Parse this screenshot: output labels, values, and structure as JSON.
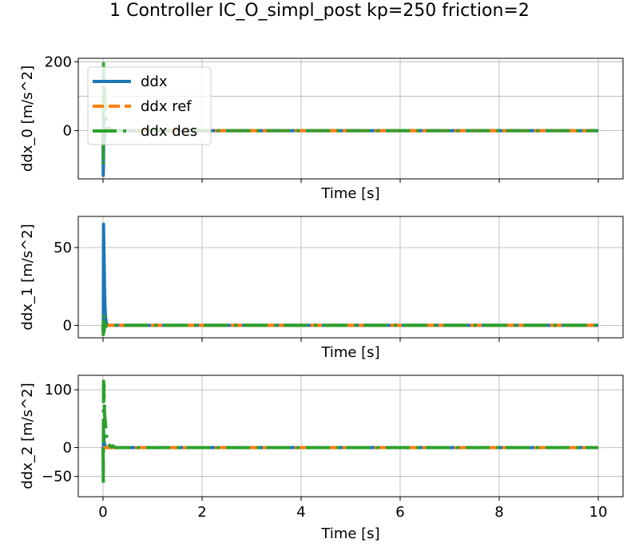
{
  "figure": {
    "title": "1 Controller IC_O_simpl_post kp=250 friction=2"
  },
  "colors": {
    "ddx": "#1f77b4",
    "ddx_ref": "#ff7f0e",
    "ddx_des": "#2ca02c"
  },
  "chart_data": [
    {
      "type": "line",
      "xlabel": "Time [s]",
      "ylabel": "ddx_0 [m/s^2]",
      "xlim": [
        -0.5,
        10.5
      ],
      "ylim": [
        -140,
        210
      ],
      "xticks": [
        0,
        2,
        4,
        6,
        8,
        10
      ],
      "yticks": [
        0,
        100,
        200
      ],
      "yticks_labeled": [
        0,
        200
      ],
      "show_x_tick_labels": false,
      "grid": true,
      "legend": "upper-left",
      "series": [
        {
          "name": "ddx",
          "style": "solid",
          "x": [
            0,
            0.005,
            0.01,
            0.015,
            0.02,
            0.03,
            0.04,
            0.05,
            0.07,
            0.1,
            0.15,
            0.2,
            0.5,
            1,
            5,
            10
          ],
          "values": [
            0,
            -130,
            -90,
            40,
            0,
            -30,
            -10,
            5,
            0,
            0,
            0,
            0,
            0,
            0,
            0,
            0
          ]
        },
        {
          "name": "ddx ref",
          "style": "dashed",
          "x": [
            0,
            10
          ],
          "values": [
            0,
            0
          ]
        },
        {
          "name": "ddx des",
          "style": "dashed",
          "x": [
            0,
            0.005,
            0.01,
            0.02,
            0.03,
            0.04,
            0.05,
            0.06,
            0.08,
            0.1,
            0.15,
            0.2,
            0.3,
            0.5,
            1,
            5,
            10
          ],
          "values": [
            0,
            -100,
            195,
            150,
            110,
            80,
            60,
            40,
            20,
            10,
            3,
            1,
            0,
            0,
            0,
            0,
            0
          ]
        }
      ]
    },
    {
      "type": "line",
      "xlabel": "Time [s]",
      "ylabel": "ddx_1 [m/s^2]",
      "xlim": [
        -0.5,
        10.5
      ],
      "ylim": [
        -8,
        70
      ],
      "xticks": [
        0,
        2,
        4,
        6,
        8,
        10
      ],
      "yticks": [
        0,
        50
      ],
      "show_x_tick_labels": false,
      "grid": true,
      "series": [
        {
          "name": "ddx",
          "style": "solid",
          "x": [
            0,
            0.005,
            0.01,
            0.02,
            0.03,
            0.04,
            0.05,
            0.07,
            0.1,
            0.15,
            0.2,
            0.5,
            1,
            5,
            10
          ],
          "values": [
            0,
            -5,
            65,
            45,
            25,
            12,
            5,
            1,
            0,
            0,
            0,
            0,
            0,
            0,
            0
          ]
        },
        {
          "name": "ddx ref",
          "style": "dashed",
          "x": [
            0,
            10
          ],
          "values": [
            0,
            0
          ]
        },
        {
          "name": "ddx des",
          "style": "dashed",
          "x": [
            0,
            0.005,
            0.01,
            0.02,
            0.03,
            0.05,
            0.08,
            0.1,
            0.15,
            0.2,
            0.5,
            1,
            5,
            10
          ],
          "values": [
            0,
            -6,
            7,
            -4,
            2,
            -1,
            0,
            0,
            0,
            0,
            0,
            0,
            0,
            0
          ]
        }
      ]
    },
    {
      "type": "line",
      "xlabel": "Time [s]",
      "ylabel": "ddx_2 [m/s^2]",
      "xlim": [
        -0.5,
        10.5
      ],
      "ylim": [
        -85,
        125
      ],
      "xticks": [
        0,
        2,
        4,
        6,
        8,
        10
      ],
      "yticks": [
        0,
        100
      ],
      "yticks_labeled": [
        -50,
        0,
        100
      ],
      "show_x_tick_labels": true,
      "grid": true,
      "series": [
        {
          "name": "ddx",
          "style": "solid",
          "x": [
            0,
            0.005,
            0.01,
            0.02,
            0.03,
            0.05,
            0.07,
            0.1,
            0.15,
            0.2,
            0.5,
            1,
            5,
            10
          ],
          "values": [
            0,
            -8,
            30,
            10,
            5,
            2,
            0,
            0,
            0,
            0,
            0,
            0,
            0,
            0
          ]
        },
        {
          "name": "ddx ref",
          "style": "dashed",
          "x": [
            0,
            10
          ],
          "values": [
            0,
            0
          ]
        },
        {
          "name": "ddx des",
          "style": "dashed",
          "x": [
            0,
            0.005,
            0.01,
            0.015,
            0.02,
            0.03,
            0.05,
            0.07,
            0.1,
            0.13,
            0.16,
            0.2,
            0.25,
            0.3,
            0.5,
            1,
            5,
            10
          ],
          "values": [
            0,
            -65,
            115,
            80,
            110,
            60,
            40,
            20,
            10,
            4,
            1,
            3,
            0,
            0,
            0,
            0,
            0,
            0
          ]
        }
      ]
    }
  ]
}
